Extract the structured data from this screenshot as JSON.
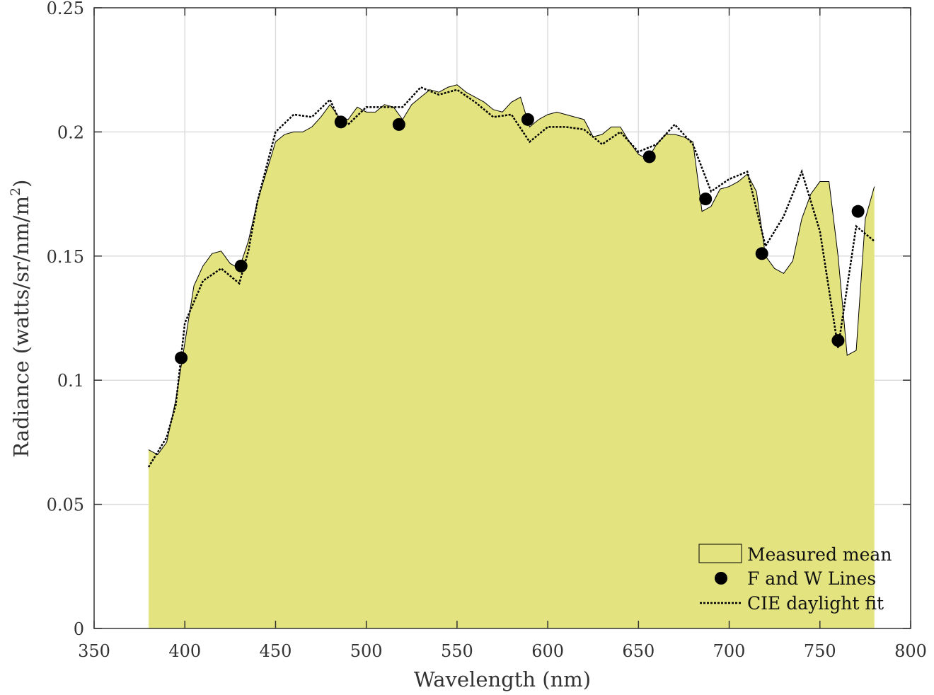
{
  "chart_data": {
    "type": "area",
    "xlabel": "Wavelength (nm)",
    "ylabel": "Radiance (watts/sr/nm/m",
    "ylabel_superscript": "2",
    "ylabel_close": ")",
    "xlim": [
      350,
      800
    ],
    "ylim": [
      0,
      0.25
    ],
    "xticks": [
      350,
      400,
      450,
      500,
      550,
      600,
      650,
      700,
      750,
      800
    ],
    "xtick_labels": [
      "350",
      "400",
      "450",
      "500",
      "550",
      "600",
      "650",
      "700",
      "750",
      "800"
    ],
    "yticks": [
      0,
      0.05,
      0.1,
      0.15,
      0.2,
      0.25
    ],
    "ytick_labels": [
      "0",
      "0.05",
      "0.1",
      "0.15",
      "0.2",
      "0.25"
    ],
    "grid": true,
    "legend_position": "bottom-right",
    "colors": {
      "area_fill": "#e3e47f",
      "area_edge": "#000000",
      "markers": "#000000",
      "fit_line": "#000000",
      "grid": "#dcdcdc"
    },
    "series": [
      {
        "name": "Measured mean",
        "type": "area",
        "x": [
          380,
          385,
          390,
          395,
          400,
          405,
          410,
          415,
          420,
          425,
          430,
          435,
          440,
          445,
          450,
          455,
          460,
          465,
          470,
          475,
          480,
          485,
          490,
          495,
          500,
          505,
          510,
          515,
          520,
          525,
          530,
          535,
          540,
          545,
          550,
          555,
          560,
          565,
          570,
          575,
          580,
          585,
          590,
          595,
          600,
          605,
          610,
          615,
          620,
          625,
          630,
          635,
          640,
          645,
          650,
          655,
          660,
          665,
          670,
          675,
          680,
          685,
          690,
          695,
          700,
          705,
          710,
          715,
          720,
          725,
          730,
          735,
          740,
          745,
          750,
          755,
          760,
          765,
          770,
          775,
          780
        ],
        "y": [
          0.072,
          0.07,
          0.075,
          0.092,
          0.115,
          0.138,
          0.146,
          0.151,
          0.152,
          0.147,
          0.145,
          0.156,
          0.172,
          0.184,
          0.196,
          0.199,
          0.2,
          0.2,
          0.202,
          0.206,
          0.211,
          0.206,
          0.205,
          0.21,
          0.208,
          0.208,
          0.211,
          0.21,
          0.205,
          0.211,
          0.214,
          0.217,
          0.216,
          0.218,
          0.219,
          0.216,
          0.214,
          0.212,
          0.209,
          0.208,
          0.212,
          0.214,
          0.202,
          0.205,
          0.207,
          0.208,
          0.207,
          0.206,
          0.205,
          0.198,
          0.199,
          0.202,
          0.202,
          0.196,
          0.191,
          0.189,
          0.195,
          0.199,
          0.199,
          0.198,
          0.196,
          0.168,
          0.17,
          0.177,
          0.178,
          0.18,
          0.183,
          0.176,
          0.15,
          0.145,
          0.143,
          0.148,
          0.165,
          0.175,
          0.18,
          0.18,
          0.15,
          0.11,
          0.112,
          0.165,
          0.178
        ]
      },
      {
        "name": "F and W Lines",
        "type": "scatter",
        "x": [
          398,
          431,
          486,
          518,
          589,
          656,
          687,
          718,
          760,
          771
        ],
        "y": [
          0.109,
          0.146,
          0.204,
          0.203,
          0.205,
          0.19,
          0.173,
          0.151,
          0.116,
          0.168
        ]
      },
      {
        "name": "CIE daylight fit",
        "type": "line",
        "x": [
          380,
          390,
          395,
          400,
          410,
          420,
          425,
          430,
          435,
          440,
          450,
          460,
          470,
          480,
          485,
          490,
          500,
          510,
          520,
          530,
          540,
          550,
          560,
          570,
          580,
          590,
          600,
          610,
          620,
          630,
          640,
          650,
          660,
          670,
          680,
          690,
          700,
          710,
          720,
          730,
          740,
          750,
          760,
          770,
          780
        ],
        "y": [
          0.065,
          0.077,
          0.09,
          0.123,
          0.14,
          0.145,
          0.142,
          0.139,
          0.152,
          0.172,
          0.2,
          0.207,
          0.206,
          0.213,
          0.205,
          0.203,
          0.21,
          0.21,
          0.21,
          0.218,
          0.215,
          0.217,
          0.212,
          0.206,
          0.207,
          0.196,
          0.202,
          0.202,
          0.201,
          0.195,
          0.2,
          0.192,
          0.195,
          0.203,
          0.195,
          0.176,
          0.181,
          0.184,
          0.154,
          0.166,
          0.184,
          0.16,
          0.113,
          0.162,
          0.156
        ]
      }
    ],
    "legend": [
      {
        "label": "Measured mean",
        "symbol": "area"
      },
      {
        "label": "F and W Lines",
        "symbol": "marker"
      },
      {
        "label": "CIE daylight fit",
        "symbol": "dotted-line"
      }
    ]
  }
}
